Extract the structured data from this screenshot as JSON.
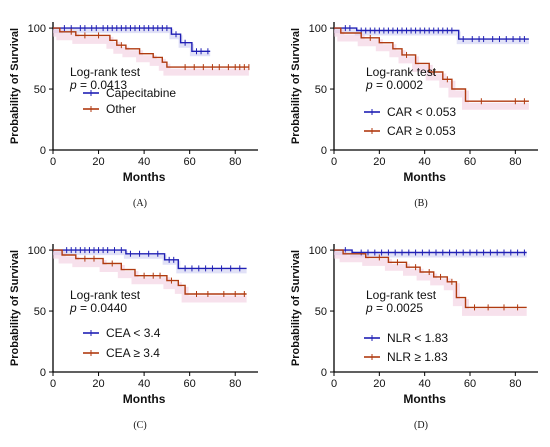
{
  "chart_data": [
    {
      "type": "line",
      "panel_label": "(A)",
      "xlabel": "Months",
      "ylabel": "Probability of Survival",
      "xlim": [
        0,
        90
      ],
      "ylim": [
        0,
        105
      ],
      "xticks": [
        0,
        20,
        40,
        60,
        80
      ],
      "yticks": [
        0,
        50,
        100
      ],
      "annotation": {
        "test": "Log-rank test",
        "p_prefix": "p",
        "p_value": "= 0.0413"
      },
      "legend_placement": "center",
      "series": [
        {
          "name": "Capecitabine",
          "color": "#1f1fb4",
          "steps": [
            [
              0,
              100
            ],
            [
              52,
              100
            ],
            [
              52,
              95
            ],
            [
              56,
              95
            ],
            [
              56,
              88
            ],
            [
              61,
              88
            ],
            [
              61,
              81
            ],
            [
              69,
              81
            ]
          ],
          "censor": [
            5,
            8,
            12,
            14,
            17,
            19,
            22,
            24,
            26,
            28,
            30,
            32,
            34,
            36,
            38,
            40,
            42,
            44,
            46,
            48,
            50,
            54,
            58,
            63,
            65,
            68
          ]
        },
        {
          "name": "Other",
          "color": "#b03a10",
          "steps": [
            [
              0,
              100
            ],
            [
              3,
              100
            ],
            [
              3,
              97
            ],
            [
              10,
              97
            ],
            [
              10,
              94
            ],
            [
              25,
              94
            ],
            [
              25,
              90
            ],
            [
              28,
              90
            ],
            [
              28,
              86
            ],
            [
              32,
              86
            ],
            [
              32,
              83
            ],
            [
              38,
              83
            ],
            [
              38,
              79
            ],
            [
              44,
              79
            ],
            [
              44,
              76
            ],
            [
              48,
              76
            ],
            [
              48,
              72
            ],
            [
              50,
              72
            ],
            [
              50,
              68
            ],
            [
              86,
              68
            ]
          ],
          "censor": [
            8,
            14,
            20,
            30,
            58,
            62,
            66,
            70,
            73,
            77,
            80,
            82,
            84,
            86
          ]
        }
      ]
    },
    {
      "type": "line",
      "panel_label": "(B)",
      "xlabel": "Months",
      "ylabel": "Probability of Survival",
      "xlim": [
        0,
        90
      ],
      "ylim": [
        0,
        105
      ],
      "xticks": [
        0,
        20,
        40,
        60,
        80
      ],
      "yticks": [
        0,
        50,
        100
      ],
      "annotation": {
        "test": "Log-rank test",
        "p_prefix": "p",
        "p_value": "= 0.0002"
      },
      "legend_placement": "bottom-right",
      "series": [
        {
          "name": "CAR < 0.053",
          "color": "#1f1fb4",
          "steps": [
            [
              0,
              100
            ],
            [
              10,
              100
            ],
            [
              10,
              98
            ],
            [
              55,
              98
            ],
            [
              55,
              91
            ],
            [
              86,
              91
            ]
          ],
          "censor": [
            5,
            7,
            12,
            14,
            16,
            18,
            20,
            22,
            24,
            26,
            28,
            30,
            32,
            34,
            36,
            38,
            40,
            42,
            44,
            46,
            48,
            50,
            52,
            57,
            61,
            64,
            66,
            70,
            73,
            76,
            79,
            82,
            84
          ]
        },
        {
          "name": "CAR ≥ 0.053",
          "color": "#b03a10",
          "steps": [
            [
              0,
              100
            ],
            [
              3,
              100
            ],
            [
              3,
              96
            ],
            [
              12,
              96
            ],
            [
              12,
              92
            ],
            [
              20,
              92
            ],
            [
              20,
              88
            ],
            [
              26,
              88
            ],
            [
              26,
              83
            ],
            [
              30,
              83
            ],
            [
              30,
              78
            ],
            [
              36,
              78
            ],
            [
              36,
              71
            ],
            [
              42,
              71
            ],
            [
              42,
              64
            ],
            [
              48,
              64
            ],
            [
              48,
              58
            ],
            [
              52,
              58
            ],
            [
              52,
              50
            ],
            [
              58,
              50
            ],
            [
              58,
              40
            ],
            [
              86,
              40
            ]
          ],
          "censor": [
            16,
            32,
            44,
            50,
            65,
            80,
            84
          ]
        }
      ]
    },
    {
      "type": "line",
      "panel_label": "(C)",
      "xlabel": "Months",
      "ylabel": "Probability of Survival",
      "xlim": [
        0,
        90
      ],
      "ylim": [
        0,
        105
      ],
      "xticks": [
        0,
        20,
        40,
        60,
        80
      ],
      "yticks": [
        0,
        50,
        100
      ],
      "annotation": {
        "test": "Log-rank test",
        "p_prefix": "p",
        "p_value": "= 0.0440"
      },
      "legend_placement": "bottom-left",
      "series": [
        {
          "name": "CEA < 3.4",
          "color": "#1f1fb4",
          "steps": [
            [
              0,
              100
            ],
            [
              32,
              100
            ],
            [
              32,
              97
            ],
            [
              49,
              97
            ],
            [
              49,
              92
            ],
            [
              55,
              92
            ],
            [
              55,
              85
            ],
            [
              85,
              85
            ]
          ],
          "censor": [
            6,
            8,
            10,
            12,
            14,
            16,
            18,
            20,
            22,
            24,
            27,
            30,
            34,
            38,
            42,
            46,
            51,
            53,
            58,
            61,
            64,
            67,
            70,
            74,
            78,
            82
          ]
        },
        {
          "name": "CEA ≥ 3.4",
          "color": "#b03a10",
          "steps": [
            [
              0,
              100
            ],
            [
              4,
              100
            ],
            [
              4,
              96
            ],
            [
              10,
              96
            ],
            [
              10,
              93
            ],
            [
              22,
              93
            ],
            [
              22,
              89
            ],
            [
              30,
              89
            ],
            [
              30,
              84
            ],
            [
              36,
              84
            ],
            [
              36,
              79
            ],
            [
              50,
              79
            ],
            [
              50,
              75
            ],
            [
              55,
              75
            ],
            [
              55,
              71
            ],
            [
              58,
              71
            ],
            [
              58,
              64
            ],
            [
              85,
              64
            ]
          ],
          "censor": [
            14,
            18,
            26,
            40,
            44,
            47,
            52,
            63,
            68,
            75,
            80,
            84
          ]
        }
      ]
    },
    {
      "type": "line",
      "panel_label": "(D)",
      "xlabel": "Months",
      "ylabel": "Probability of Survival",
      "xlim": [
        0,
        90
      ],
      "ylim": [
        0,
        105
      ],
      "xticks": [
        0,
        20,
        40,
        60,
        80
      ],
      "yticks": [
        0,
        50,
        100
      ],
      "annotation": {
        "test": "Log-rank test",
        "p_prefix": "p",
        "p_value": "= 0.0025"
      },
      "legend_placement": "bottom-right",
      "series": [
        {
          "name": "NLR < 1.83",
          "color": "#1f1fb4",
          "steps": [
            [
              0,
              100
            ],
            [
              8,
              100
            ],
            [
              8,
              98
            ],
            [
              85,
              98
            ]
          ],
          "censor": [
            5,
            12,
            15,
            18,
            21,
            24,
            27,
            30,
            33,
            36,
            39,
            42,
            45,
            48,
            51,
            54,
            57,
            60,
            63,
            66,
            69,
            72,
            75,
            78,
            81,
            84
          ]
        },
        {
          "name": "NLR ≥ 1.83",
          "color": "#b03a10",
          "steps": [
            [
              0,
              100
            ],
            [
              4,
              100
            ],
            [
              4,
              97
            ],
            [
              14,
              97
            ],
            [
              14,
              94
            ],
            [
              24,
              94
            ],
            [
              24,
              90
            ],
            [
              32,
              90
            ],
            [
              32,
              86
            ],
            [
              38,
              86
            ],
            [
              38,
              82
            ],
            [
              44,
              82
            ],
            [
              44,
              78
            ],
            [
              50,
              78
            ],
            [
              50,
              74
            ],
            [
              54,
              74
            ],
            [
              54,
              61
            ],
            [
              58,
              61
            ],
            [
              58,
              53
            ],
            [
              85,
              53
            ]
          ],
          "censor": [
            20,
            28,
            36,
            42,
            47,
            52,
            62,
            68,
            75,
            81
          ]
        }
      ]
    }
  ]
}
